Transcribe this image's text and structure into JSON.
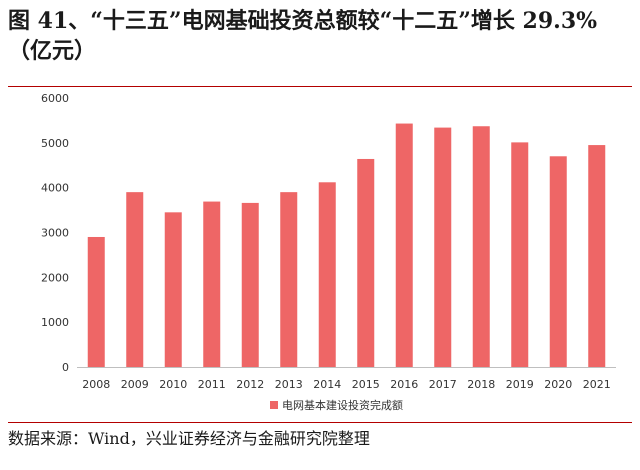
{
  "title": "图 41、“十三五”电网基础投资总额较“十二五”增长 29.3%（亿元）",
  "source": "数据来源：Wind，兴业证券经济与金融研究院整理",
  "colors": {
    "bar": "#ee6666",
    "rule": "#b30000"
  },
  "chart_data": {
    "type": "bar",
    "categories": [
      "2008",
      "2009",
      "2010",
      "2011",
      "2012",
      "2013",
      "2014",
      "2015",
      "2016",
      "2017",
      "2018",
      "2019",
      "2020",
      "2021"
    ],
    "series": [
      {
        "name": "电网基本建设投资完成额",
        "values": [
          2900,
          3900,
          3450,
          3690,
          3660,
          3900,
          4120,
          4640,
          5430,
          5340,
          5370,
          5010,
          4700,
          4950
        ]
      }
    ],
    "ylim": [
      0,
      6000
    ],
    "yticks": [
      0,
      1000,
      2000,
      3000,
      4000,
      5000,
      6000
    ],
    "grid": false,
    "legend": "bottom"
  }
}
